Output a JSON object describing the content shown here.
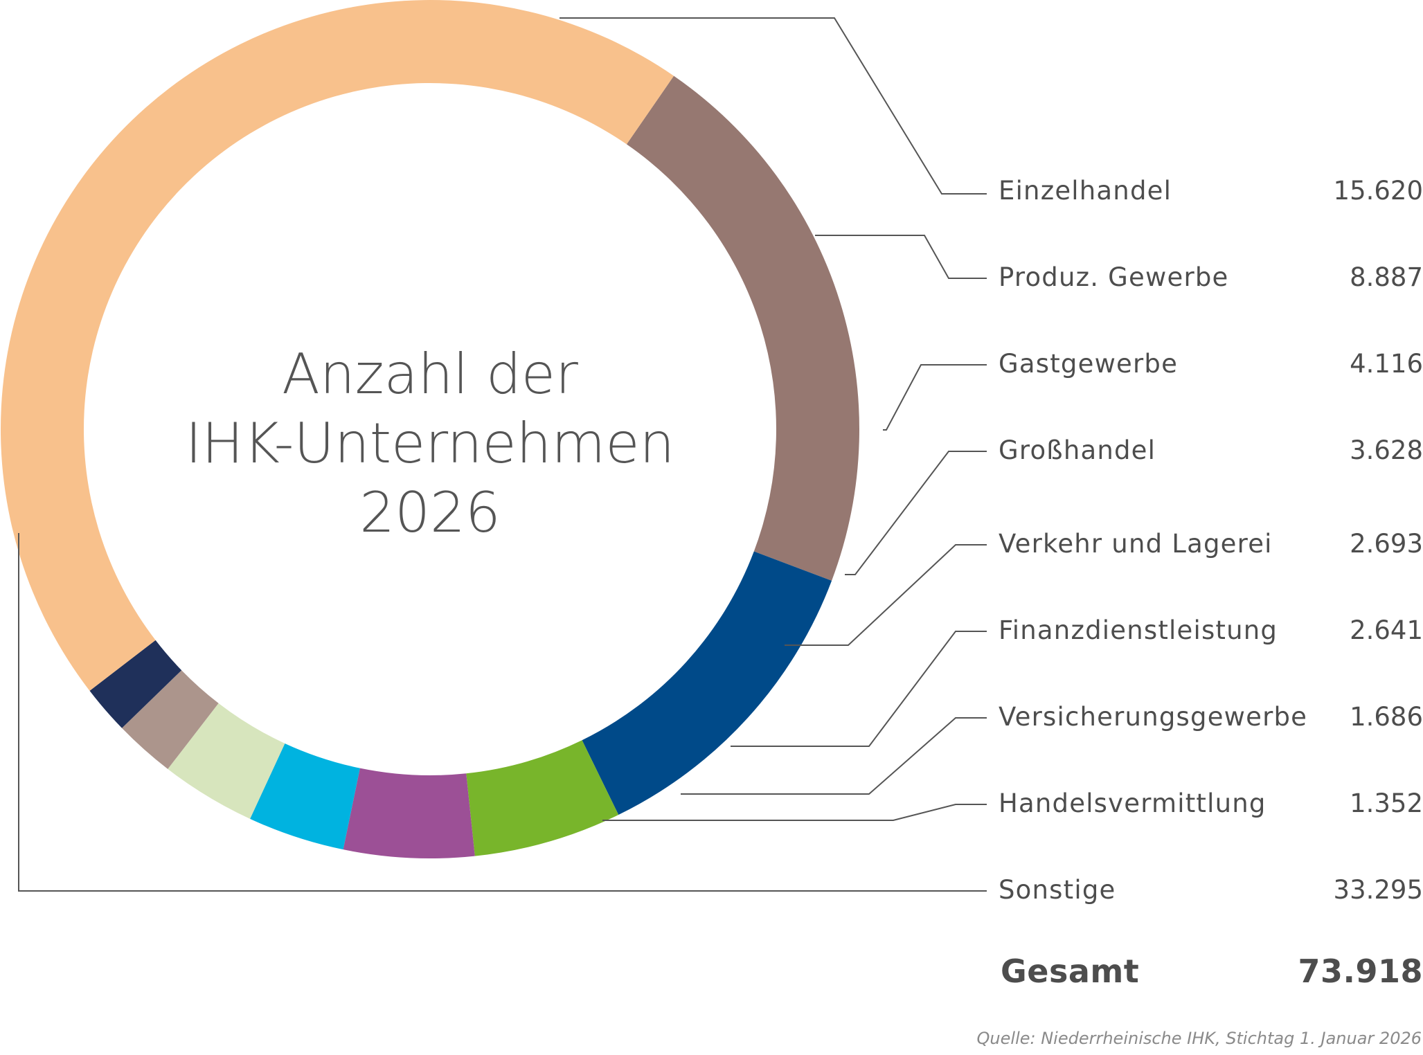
{
  "chart_data": {
    "type": "pie",
    "title_lines": [
      "Anzahl der",
      "IHK-Unternehmen",
      "2026"
    ],
    "series": [
      {
        "label": "Einzelhandel",
        "value": 15620,
        "value_text": "15.620",
        "color": "#967871"
      },
      {
        "label": "Produz. Gewerbe",
        "value": 8887,
        "value_text": "8.887",
        "color": "#004a89"
      },
      {
        "label": "Gastgewerbe",
        "value": 4116,
        "value_text": "4.116",
        "color": "#78b52b"
      },
      {
        "label": "Großhandel",
        "value": 3628,
        "value_text": "3.628",
        "color": "#9c5096"
      },
      {
        "label": "Verkehr und Lagerei",
        "value": 2693,
        "value_text": "2.693",
        "color": "#00b3e0"
      },
      {
        "label": "Finanzdienstleistung",
        "value": 2641,
        "value_text": "2.641",
        "color": "#d7e5bd"
      },
      {
        "label": "Versicherungsgewerbe",
        "value": 1686,
        "value_text": "1.686",
        "color": "#ac958c"
      },
      {
        "label": "Handelsvermittlung",
        "value": 1352,
        "value_text": "1.352",
        "color": "#1f305a"
      },
      {
        "label": "Sonstige",
        "value": 33295,
        "value_text": "33.295",
        "color": "#f8c18c"
      }
    ],
    "total": {
      "label": "Gesamt",
      "value": 73918,
      "value_text": "73.918"
    }
  },
  "source": "Quelle: Niederrheinische IHK, Stichtag 1. Januar 2026"
}
